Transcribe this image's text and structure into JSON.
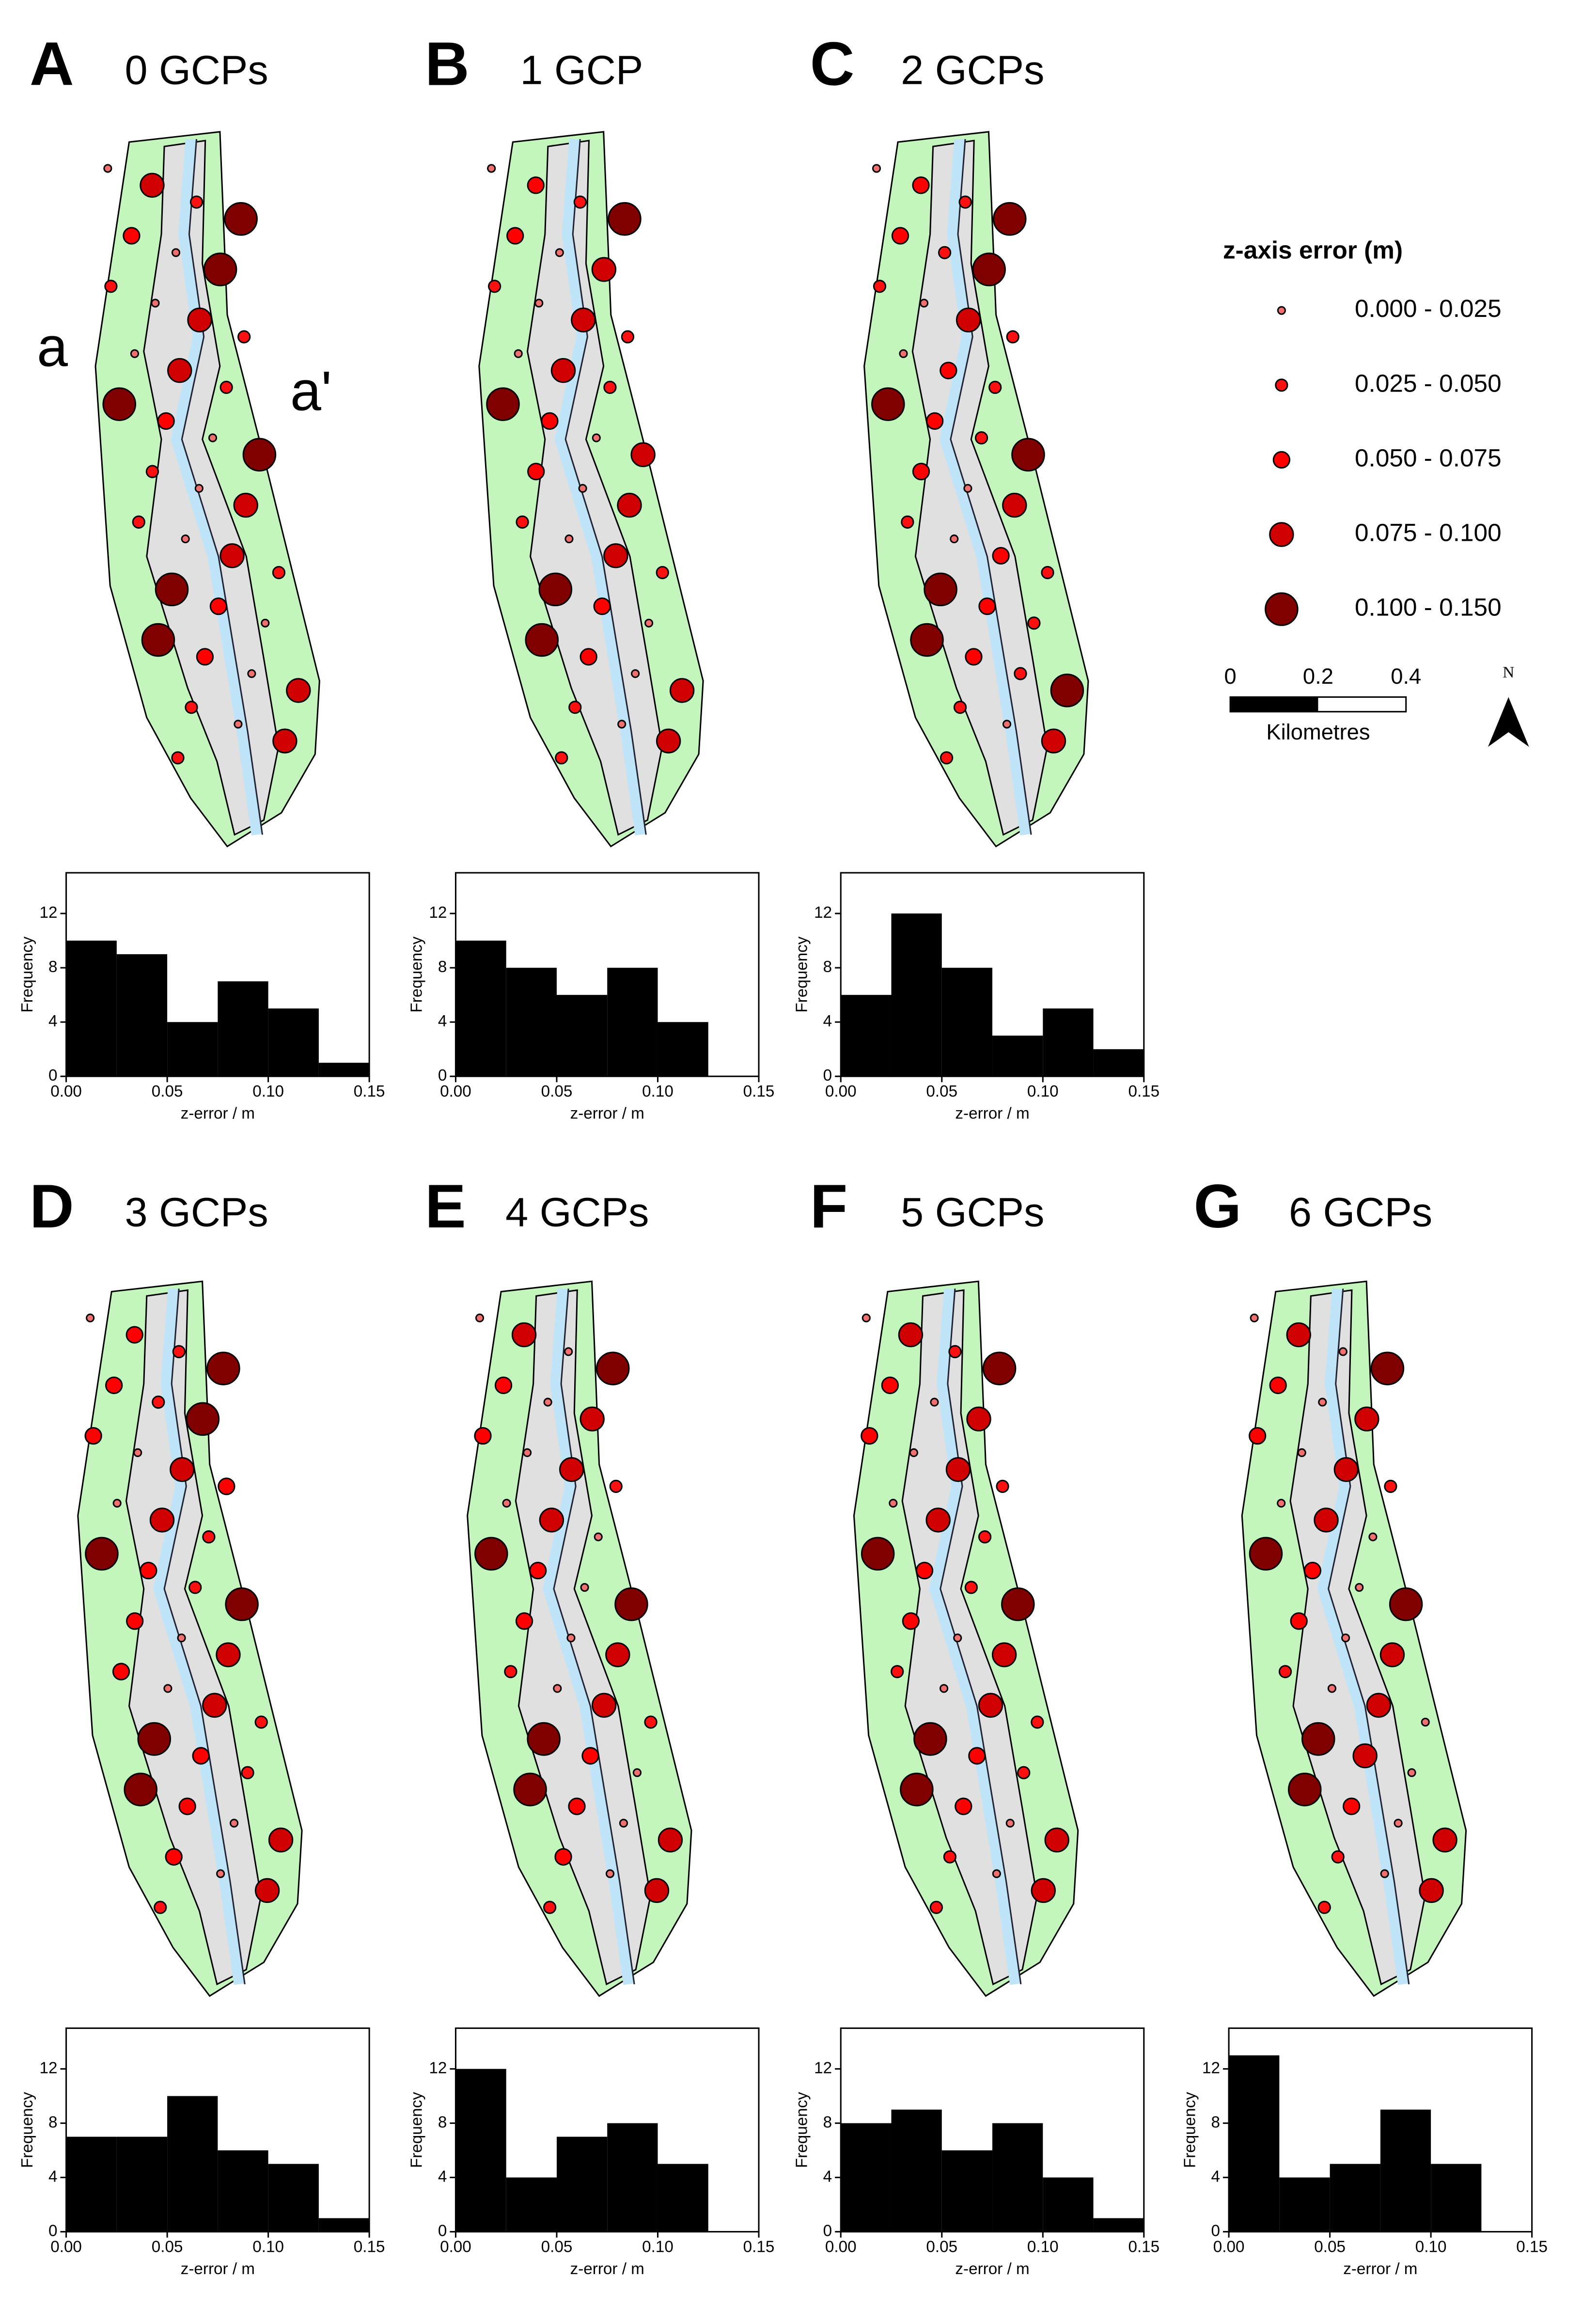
{
  "chart_data": [
    {
      "type": "histogram",
      "label": "A",
      "title": "0 GCPs",
      "bins": [
        0,
        0.025,
        0.05,
        0.075,
        0.1,
        0.125,
        0.15
      ],
      "values": [
        10,
        9,
        4,
        7,
        5,
        1
      ],
      "color": "#000000",
      "xlim": [
        0,
        0.15
      ],
      "ylim": [
        0,
        15
      ],
      "xticks": [
        {
          "value": 0,
          "label": "0.00"
        },
        0.05,
        {
          "value": 0.1,
          "label": "0.10"
        },
        0.15
      ],
      "yticks": [
        0,
        4,
        8,
        12
      ],
      "xlabel": "z-error / m",
      "ylabel": "Frequency"
    },
    {
      "type": "histogram",
      "label": "B",
      "title": "1 GCP",
      "bins": [
        0,
        0.025,
        0.05,
        0.075,
        0.1,
        0.125,
        0.15
      ],
      "values": [
        10,
        8,
        6,
        8,
        4,
        0
      ],
      "color": "#000000",
      "xlim": [
        0,
        0.15
      ],
      "ylim": [
        0,
        15
      ],
      "xticks": [
        {
          "value": 0,
          "label": "0.00"
        },
        0.05,
        {
          "value": 0.1,
          "label": "0.10"
        },
        0.15
      ],
      "yticks": [
        0,
        4,
        8,
        12
      ],
      "xlabel": "z-error / m",
      "ylabel": "Frequency"
    },
    {
      "type": "histogram",
      "label": "C",
      "title": "2 GCPs",
      "bins": [
        0,
        0.025,
        0.05,
        0.075,
        0.1,
        0.125,
        0.15
      ],
      "values": [
        6,
        12,
        8,
        3,
        5,
        2
      ],
      "color": "#000000",
      "xlim": [
        0,
        0.15
      ],
      "ylim": [
        0,
        15
      ],
      "xticks": [
        {
          "value": 0,
          "label": "0.00"
        },
        0.05,
        {
          "value": 0.1,
          "label": "0.10"
        },
        0.15
      ],
      "yticks": [
        0,
        4,
        8,
        12
      ],
      "xlabel": "z-error / m",
      "ylabel": "Frequency"
    },
    {
      "type": "histogram",
      "label": "D",
      "title": "3 GCPs",
      "bins": [
        0,
        0.025,
        0.05,
        0.075,
        0.1,
        0.125,
        0.15
      ],
      "values": [
        7,
        7,
        10,
        6,
        5,
        1
      ],
      "color": "#000000",
      "xlim": [
        0,
        0.15
      ],
      "ylim": [
        0,
        15
      ],
      "xticks": [
        {
          "value": 0,
          "label": "0.00"
        },
        0.05,
        {
          "value": 0.1,
          "label": "0.10"
        },
        0.15
      ],
      "yticks": [
        0,
        4,
        8,
        12
      ],
      "xlabel": "z-error / m",
      "ylabel": "Frequency"
    },
    {
      "type": "histogram",
      "label": "E",
      "title": "4 GCPs",
      "bins": [
        0,
        0.025,
        0.05,
        0.075,
        0.1,
        0.125,
        0.15
      ],
      "values": [
        12,
        4,
        7,
        8,
        5,
        0
      ],
      "color": "#000000",
      "xlim": [
        0,
        0.15
      ],
      "ylim": [
        0,
        15
      ],
      "xticks": [
        {
          "value": 0,
          "label": "0.00"
        },
        0.05,
        {
          "value": 0.1,
          "label": "0.10"
        },
        0.15
      ],
      "yticks": [
        0,
        4,
        8,
        12
      ],
      "xlabel": "z-error / m",
      "ylabel": "Frequency"
    },
    {
      "type": "histogram",
      "label": "F",
      "title": "5 GCPs",
      "bins": [
        0,
        0.025,
        0.05,
        0.075,
        0.1,
        0.125,
        0.15
      ],
      "values": [
        8,
        9,
        6,
        8,
        4,
        1
      ],
      "color": "#000000",
      "xlim": [
        0,
        0.15
      ],
      "ylim": [
        0,
        15
      ],
      "xticks": [
        {
          "value": 0,
          "label": "0.00"
        },
        0.05,
        {
          "value": 0.1,
          "label": "0.10"
        },
        0.15
      ],
      "yticks": [
        0,
        4,
        8,
        12
      ],
      "xlabel": "z-error / m",
      "ylabel": "Frequency"
    },
    {
      "type": "histogram",
      "label": "G",
      "title": "6 GCPs",
      "bins": [
        0,
        0.025,
        0.05,
        0.075,
        0.1,
        0.125,
        0.15
      ],
      "values": [
        13,
        4,
        5,
        9,
        5,
        0
      ],
      "color": "#000000",
      "xlim": [
        0,
        0.15
      ],
      "ylim": [
        0,
        15
      ],
      "xticks": [
        {
          "value": 0,
          "label": "0.00"
        },
        0.05,
        {
          "value": 0.1,
          "label": "0.10"
        },
        0.15
      ],
      "yticks": [
        0,
        4,
        8,
        12
      ],
      "xlabel": "z-error / m",
      "ylabel": "Frequency"
    }
  ],
  "map_labels": [
    "a",
    "a'"
  ],
  "legend": {
    "title": "z-axis error (m)",
    "items": [
      {
        "label": "0.000 - 0.025",
        "color": "#f07070"
      },
      {
        "label": "0.025 - 0.050",
        "color": "#ff1010"
      },
      {
        "label": "0.050 - 0.075",
        "color": "#ff0000"
      },
      {
        "label": "0.075 - 0.100",
        "color": "#d00000"
      },
      {
        "label": "0.100 - 0.150",
        "color": "#800000"
      }
    ]
  },
  "scale_bar": {
    "ticks": [
      "0",
      "0.2",
      "0.4"
    ],
    "unit": "Kilometres"
  },
  "north": "N"
}
